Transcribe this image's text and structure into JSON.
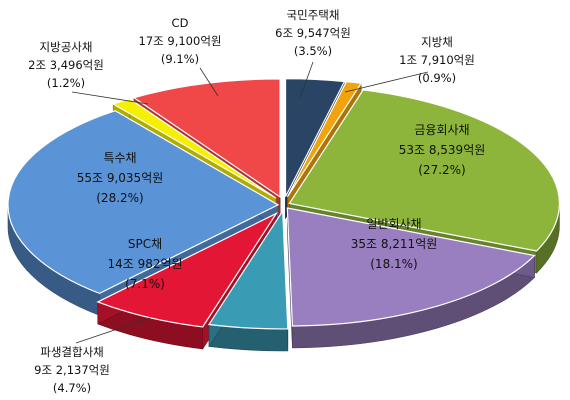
{
  "chart_data": {
    "type": "pie",
    "title": "",
    "style": "3d-exploded",
    "slices": [
      {
        "name": "국민주택채",
        "amount": "6조 9,547억원",
        "percent": 3.5,
        "pct_label": "(3.5%)",
        "color": "#2a4466"
      },
      {
        "name": "지방채",
        "amount": "1조 7,910억원",
        "percent": 0.9,
        "pct_label": "(0.9%)",
        "color": "#f0a30a"
      },
      {
        "name": "금융회사채",
        "amount": "53조 8,539억원",
        "percent": 27.2,
        "pct_label": "(27.2%)",
        "color": "#8db53c"
      },
      {
        "name": "일반회사채",
        "amount": "35조 8,211억원",
        "percent": 18.1,
        "pct_label": "(18.1%)",
        "color": "#9a7fc0"
      },
      {
        "name": "파생결합사채",
        "amount": "9조 2,137억원",
        "percent": 4.7,
        "pct_label": "(4.7%)",
        "color": "#3a9bb5"
      },
      {
        "name": "SPC채",
        "amount": "14조 982억원",
        "percent": 7.1,
        "pct_label": "(7.1%)",
        "color": "#e41635"
      },
      {
        "name": "특수채",
        "amount": "55조 9,035억원",
        "percent": 28.2,
        "pct_label": "(28.2%)",
        "color": "#5a93d6"
      },
      {
        "name": "지방공사채",
        "amount": "2조 3,496억원",
        "percent": 1.2,
        "pct_label": "(1.2%)",
        "color": "#f4f000"
      },
      {
        "name": "CD",
        "amount": "17조 9,100억원",
        "percent": 9.1,
        "pct_label": "(9.1%)",
        "color": "#f04848"
      }
    ]
  }
}
